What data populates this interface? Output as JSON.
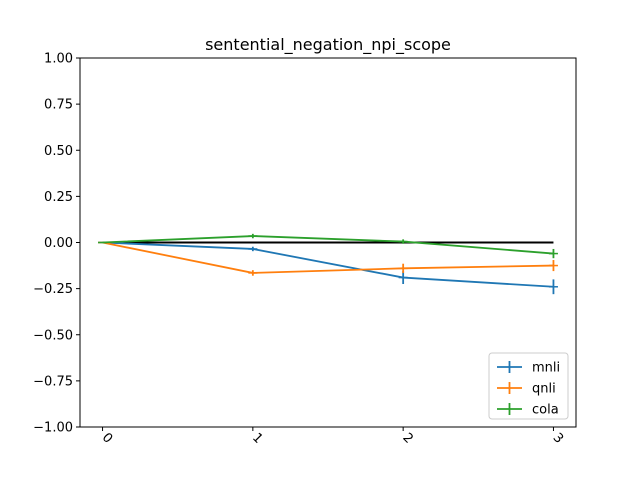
{
  "chart_data": {
    "type": "line",
    "title": "sentential_negation_npi_scope",
    "xlabel": "",
    "ylabel": "",
    "x": [
      0,
      1,
      2,
      3
    ],
    "x_tick_labels": [
      "0",
      "1",
      "2",
      "3"
    ],
    "x_tick_rotation_deg": 45,
    "ylim": [
      -1.0,
      1.0
    ],
    "y_ticks": [
      -1.0,
      -0.75,
      -0.5,
      -0.25,
      0.0,
      0.25,
      0.5,
      0.75,
      1.0
    ],
    "y_tick_labels": [
      "−1.00",
      "−0.75",
      "−0.50",
      "−0.25",
      "0.00",
      "0.25",
      "0.50",
      "0.75",
      "1.00"
    ],
    "grid": false,
    "legend_position": "lower right",
    "baseline": {
      "y": 0.0,
      "color": "#000000"
    },
    "series": [
      {
        "name": "mnli",
        "color": "#1f77b4",
        "values": [
          0.0,
          -0.035,
          -0.19,
          -0.24
        ],
        "errors": [
          0.0,
          0.012,
          0.035,
          0.04
        ]
      },
      {
        "name": "qnli",
        "color": "#ff7f0e",
        "values": [
          0.0,
          -0.165,
          -0.14,
          -0.125
        ],
        "errors": [
          0.0,
          0.015,
          0.025,
          0.03
        ]
      },
      {
        "name": "cola",
        "color": "#2ca02c",
        "values": [
          0.0,
          0.035,
          0.005,
          -0.06
        ],
        "errors": [
          0.0,
          0.012,
          0.012,
          0.025
        ]
      }
    ]
  }
}
